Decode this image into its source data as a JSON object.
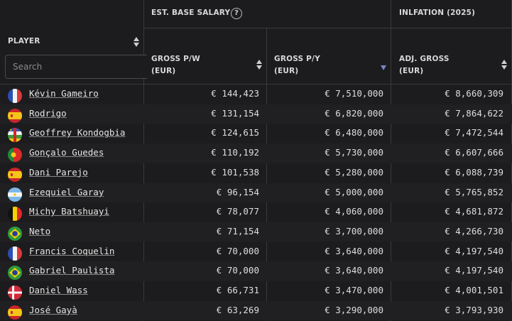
{
  "header": {
    "group_salary": "EST. BASE SALARY",
    "help_glyph": "?",
    "group_inflation": "INLFATION (2025)",
    "col_player": "PLAYER",
    "col_gross_pw_line1": "GROSS P/W",
    "col_gross_pw_line2": "(EUR)",
    "col_gross_py_line1": "GROSS P/Y",
    "col_gross_py_line2": "(EUR)",
    "col_adj_line1": "ADJ. GROSS",
    "col_adj_line2": "(EUR)",
    "search_placeholder": "Search"
  },
  "sort": {
    "active_column": "gross_py",
    "direction": "descending"
  },
  "rows": [
    {
      "name": "Kévin Gameiro",
      "flag": "France",
      "pw": "€ 144,423",
      "py": "€ 7,510,000",
      "adj": "€ 8,660,309"
    },
    {
      "name": "Rodrigo",
      "flag": "Spain",
      "pw": "€ 131,154",
      "py": "€ 6,820,000",
      "adj": "€ 7,864,622"
    },
    {
      "name": "Geoffrey Kondogbia",
      "flag": "Central African Republic",
      "pw": "€ 124,615",
      "py": "€ 6,480,000",
      "adj": "€ 7,472,544"
    },
    {
      "name": "Gonçalo Guedes",
      "flag": "Portugal",
      "pw": "€ 110,192",
      "py": "€ 5,730,000",
      "adj": "€ 6,607,666"
    },
    {
      "name": "Dani Parejo",
      "flag": "Spain",
      "pw": "€ 101,538",
      "py": "€ 5,280,000",
      "adj": "€ 6,088,739"
    },
    {
      "name": "Ezequiel Garay",
      "flag": "Argentina",
      "pw": "€ 96,154",
      "py": "€ 5,000,000",
      "adj": "€ 5,765,852"
    },
    {
      "name": "Michy Batshuayi",
      "flag": "Belgium",
      "pw": "€ 78,077",
      "py": "€ 4,060,000",
      "adj": "€ 4,681,872"
    },
    {
      "name": "Neto",
      "flag": "Brazil",
      "pw": "€ 71,154",
      "py": "€ 3,700,000",
      "adj": "€ 4,266,730"
    },
    {
      "name": "Francis Coquelin",
      "flag": "France",
      "pw": "€ 70,000",
      "py": "€ 3,640,000",
      "adj": "€ 4,197,540"
    },
    {
      "name": "Gabriel Paulista",
      "flag": "Brazil",
      "pw": "€ 70,000",
      "py": "€ 3,640,000",
      "adj": "€ 4,197,540"
    },
    {
      "name": "Daniel Wass",
      "flag": "Denmark",
      "pw": "€ 66,731",
      "py": "€ 3,470,000",
      "adj": "€ 4,001,501"
    },
    {
      "name": "José Gayà",
      "flag": "Spain",
      "pw": "€ 63,269",
      "py": "€ 3,290,000",
      "adj": "€ 3,793,930"
    }
  ]
}
